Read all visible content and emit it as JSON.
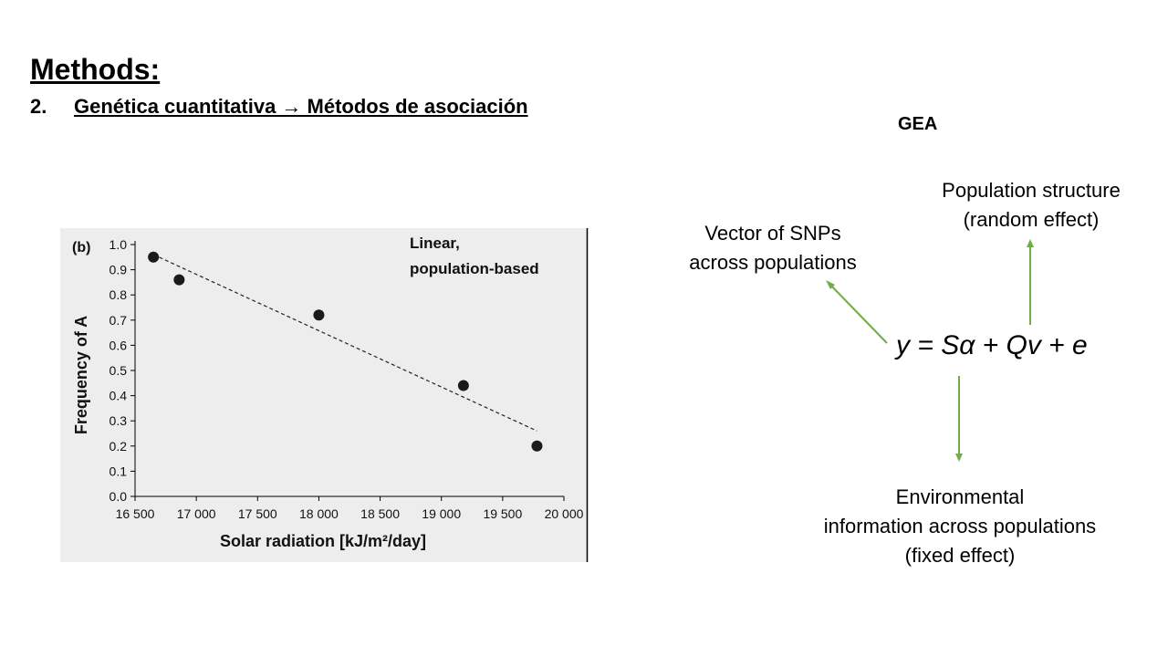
{
  "slide": {
    "title": "Methods:",
    "subtitle_number": "2.",
    "subtitle_text": "Genética cuantitativa → Métodos de asociación"
  },
  "gea": {
    "heading": "GEA",
    "formula": "y = Sα + Qv + e",
    "snps_note": [
      "Vector of SNPs",
      "across populations"
    ],
    "population_note": [
      "Population structure",
      "(random effect)"
    ],
    "environment_note": [
      "Environmental",
      "information across populations",
      "(fixed effect)"
    ],
    "arrow_color": "#70AD47"
  },
  "chart_data": {
    "type": "scatter",
    "panel_label": "(b)",
    "annotation": [
      "Linear,",
      "population-based"
    ],
    "xlabel": "Solar radiation [kJ/m²/day]",
    "ylabel": "Frequency of A",
    "xlim": [
      16500,
      20000
    ],
    "ylim": [
      0.0,
      1.0
    ],
    "xticks": [
      16500,
      17000,
      17500,
      18000,
      18500,
      19000,
      19500,
      20000
    ],
    "xtick_labels": [
      "16 500",
      "17 000",
      "17 500",
      "18 000",
      "18 500",
      "19 000",
      "19 500",
      "20 000"
    ],
    "yticks": [
      0.0,
      0.1,
      0.2,
      0.3,
      0.4,
      0.5,
      0.6,
      0.7,
      0.8,
      0.9,
      1.0
    ],
    "ytick_labels": [
      "0.0",
      "0.1",
      "0.2",
      "0.3",
      "0.4",
      "0.5",
      "0.6",
      "0.7",
      "0.8",
      "0.9",
      "1.0"
    ],
    "points": [
      {
        "x": 16650,
        "y": 0.95
      },
      {
        "x": 16860,
        "y": 0.86
      },
      {
        "x": 18000,
        "y": 0.72
      },
      {
        "x": 19180,
        "y": 0.44
      },
      {
        "x": 19780,
        "y": 0.2
      }
    ],
    "trendline": {
      "x": [
        16650,
        19780
      ],
      "y": [
        0.96,
        0.26
      ],
      "style": "dashed"
    },
    "grid": false,
    "background": "#EDEDED",
    "marker_color": "#1a1a1a"
  }
}
